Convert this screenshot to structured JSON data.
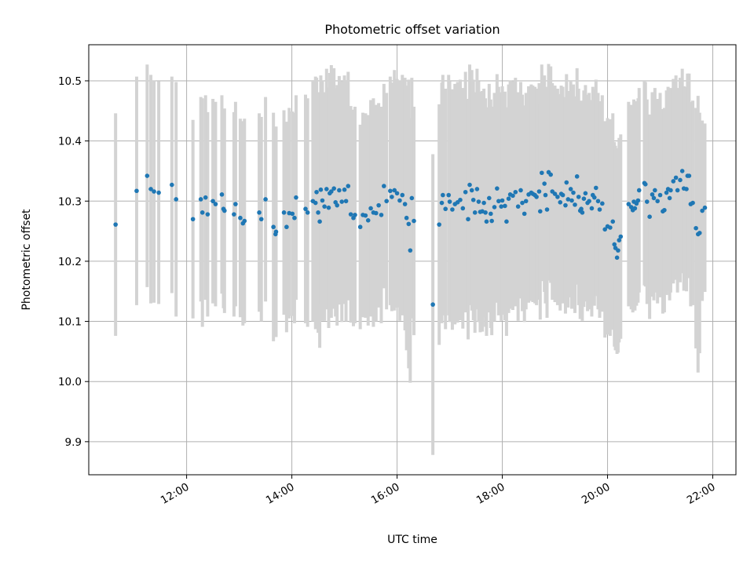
{
  "chart_data": {
    "type": "scatter",
    "title": "Photometric offset variation",
    "xlabel": "UTC time",
    "ylabel": "Photometric offset",
    "x_axis_type": "time",
    "x_unit": "hours UTC",
    "xlim": [
      10.14,
      22.44
    ],
    "ylim": [
      9.845,
      10.56
    ],
    "x_ticks": [
      {
        "value": 12,
        "label": "12:00"
      },
      {
        "value": 14,
        "label": "14:00"
      },
      {
        "value": 16,
        "label": "16:00"
      },
      {
        "value": 18,
        "label": "18:00"
      },
      {
        "value": 20,
        "label": "20:00"
      },
      {
        "value": 22,
        "label": "22:00"
      }
    ],
    "y_ticks": [
      {
        "value": 9.9,
        "label": "9.9"
      },
      {
        "value": 10.0,
        "label": "10.0"
      },
      {
        "value": 10.1,
        "label": "10.1"
      },
      {
        "value": 10.2,
        "label": "10.2"
      },
      {
        "value": 10.3,
        "label": "10.3"
      },
      {
        "value": 10.4,
        "label": "10.4"
      },
      {
        "value": 10.5,
        "label": "10.5"
      }
    ],
    "grid": true,
    "legend": "none",
    "colors": {
      "point": "#1f77b4",
      "errorbar": "#d3d3d3",
      "grid": "#b0b0b0"
    },
    "points": [
      [
        10.65,
        10.261,
        0.185
      ],
      [
        11.05,
        10.317,
        0.19
      ],
      [
        11.25,
        10.342,
        0.185
      ],
      [
        11.32,
        10.32,
        0.19
      ],
      [
        11.38,
        10.316,
        0.185
      ],
      [
        11.47,
        10.314,
        0.185
      ],
      [
        11.72,
        10.327,
        0.18
      ],
      [
        11.8,
        10.303,
        0.195
      ],
      [
        12.12,
        10.27,
        0.165
      ],
      [
        12.27,
        10.303,
        0.17
      ],
      [
        12.3,
        10.281,
        0.19
      ],
      [
        12.36,
        10.306,
        0.17
      ],
      [
        12.4,
        10.278,
        0.17
      ],
      [
        12.5,
        10.3,
        0.17
      ],
      [
        12.55,
        10.295,
        0.17
      ],
      [
        12.67,
        10.311,
        0.165
      ],
      [
        12.7,
        10.287,
        0.165
      ],
      [
        12.72,
        10.284,
        0.17
      ],
      [
        12.9,
        10.278,
        0.17
      ],
      [
        12.93,
        10.295,
        0.17
      ],
      [
        13.02,
        10.272,
        0.165
      ],
      [
        13.07,
        10.263,
        0.17
      ],
      [
        13.1,
        10.267,
        0.17
      ],
      [
        13.38,
        10.281,
        0.165
      ],
      [
        13.42,
        10.27,
        0.17
      ],
      [
        13.5,
        10.303,
        0.17
      ],
      [
        13.65,
        10.257,
        0.19
      ],
      [
        13.69,
        10.245,
        0.17
      ],
      [
        13.7,
        10.249,
        0.175
      ],
      [
        13.85,
        10.281,
        0.17
      ],
      [
        13.9,
        10.257,
        0.175
      ],
      [
        13.95,
        10.28,
        0.175
      ],
      [
        14.01,
        10.279,
        0.17
      ],
      [
        14.05,
        10.272,
        0.175
      ],
      [
        14.08,
        10.306,
        0.17
      ],
      [
        14.26,
        10.287,
        0.19
      ],
      [
        14.3,
        10.281,
        0.19
      ],
      [
        14.4,
        10.3,
        0.2
      ],
      [
        14.45,
        10.297,
        0.21
      ],
      [
        14.47,
        10.315,
        0.19
      ],
      [
        14.5,
        10.281,
        0.2
      ],
      [
        14.53,
        10.266,
        0.21
      ],
      [
        14.55,
        10.319,
        0.19
      ],
      [
        14.58,
        10.301,
        0.2
      ],
      [
        14.62,
        10.291,
        0.19
      ],
      [
        14.66,
        10.32,
        0.2
      ],
      [
        14.7,
        10.289,
        0.2
      ],
      [
        14.72,
        10.313,
        0.2
      ],
      [
        14.75,
        10.316,
        0.21
      ],
      [
        14.8,
        10.321,
        0.2
      ],
      [
        14.83,
        10.298,
        0.19
      ],
      [
        14.86,
        10.293,
        0.2
      ],
      [
        14.9,
        10.318,
        0.19
      ],
      [
        14.95,
        10.299,
        0.2
      ],
      [
        15.0,
        10.319,
        0.19
      ],
      [
        15.03,
        10.3,
        0.2
      ],
      [
        15.07,
        10.325,
        0.19
      ],
      [
        15.12,
        10.278,
        0.18
      ],
      [
        15.17,
        10.272,
        0.18
      ],
      [
        15.2,
        10.277,
        0.18
      ],
      [
        15.3,
        10.257,
        0.17
      ],
      [
        15.35,
        10.277,
        0.17
      ],
      [
        15.4,
        10.276,
        0.17
      ],
      [
        15.45,
        10.268,
        0.175
      ],
      [
        15.5,
        10.288,
        0.18
      ],
      [
        15.55,
        10.281,
        0.19
      ],
      [
        15.6,
        10.28,
        0.18
      ],
      [
        15.65,
        10.293,
        0.17
      ],
      [
        15.7,
        10.277,
        0.18
      ],
      [
        15.75,
        10.325,
        0.17
      ],
      [
        15.8,
        10.3,
        0.18
      ],
      [
        15.87,
        10.317,
        0.19
      ],
      [
        15.9,
        10.307,
        0.19
      ],
      [
        15.95,
        10.318,
        0.2
      ],
      [
        16.0,
        10.313,
        0.19
      ],
      [
        16.05,
        10.301,
        0.2
      ],
      [
        16.1,
        10.31,
        0.2
      ],
      [
        16.15,
        10.295,
        0.21
      ],
      [
        16.18,
        10.272,
        0.22
      ],
      [
        16.22,
        10.262,
        0.24
      ],
      [
        16.25,
        10.218,
        0.22
      ],
      [
        16.28,
        10.305,
        0.2
      ],
      [
        16.32,
        10.267,
        0.19
      ],
      [
        16.68,
        10.128,
        0.25
      ],
      [
        16.8,
        10.261,
        0.2
      ],
      [
        16.85,
        10.297,
        0.2
      ],
      [
        16.87,
        10.31,
        0.2
      ],
      [
        16.92,
        10.287,
        0.2
      ],
      [
        16.98,
        10.31,
        0.2
      ],
      [
        17.0,
        10.299,
        0.2
      ],
      [
        17.05,
        10.286,
        0.2
      ],
      [
        17.1,
        10.295,
        0.2
      ],
      [
        17.15,
        10.298,
        0.2
      ],
      [
        17.2,
        10.302,
        0.2
      ],
      [
        17.25,
        10.288,
        0.2
      ],
      [
        17.3,
        10.315,
        0.2
      ],
      [
        17.35,
        10.27,
        0.2
      ],
      [
        17.38,
        10.327,
        0.2
      ],
      [
        17.42,
        10.318,
        0.2
      ],
      [
        17.45,
        10.302,
        0.2
      ],
      [
        17.48,
        10.281,
        0.2
      ],
      [
        17.52,
        10.32,
        0.2
      ],
      [
        17.55,
        10.299,
        0.2
      ],
      [
        17.58,
        10.282,
        0.2
      ],
      [
        17.62,
        10.283,
        0.2
      ],
      [
        17.65,
        10.297,
        0.19
      ],
      [
        17.68,
        10.281,
        0.19
      ],
      [
        17.7,
        10.266,
        0.19
      ],
      [
        17.75,
        10.305,
        0.19
      ],
      [
        17.78,
        10.279,
        0.19
      ],
      [
        17.8,
        10.267,
        0.19
      ],
      [
        17.85,
        10.29,
        0.19
      ],
      [
        17.9,
        10.321,
        0.19
      ],
      [
        17.93,
        10.3,
        0.19
      ],
      [
        17.98,
        10.291,
        0.19
      ],
      [
        18.0,
        10.301,
        0.19
      ],
      [
        18.05,
        10.292,
        0.19
      ],
      [
        18.08,
        10.266,
        0.19
      ],
      [
        18.12,
        10.304,
        0.19
      ],
      [
        18.15,
        10.311,
        0.19
      ],
      [
        18.2,
        10.309,
        0.19
      ],
      [
        18.25,
        10.315,
        0.19
      ],
      [
        18.3,
        10.291,
        0.19
      ],
      [
        18.35,
        10.318,
        0.18
      ],
      [
        18.38,
        10.297,
        0.18
      ],
      [
        18.42,
        10.279,
        0.18
      ],
      [
        18.45,
        10.3,
        0.18
      ],
      [
        18.5,
        10.311,
        0.18
      ],
      [
        18.55,
        10.314,
        0.18
      ],
      [
        18.58,
        10.312,
        0.18
      ],
      [
        18.62,
        10.31,
        0.18
      ],
      [
        18.65,
        10.307,
        0.18
      ],
      [
        18.7,
        10.316,
        0.18
      ],
      [
        18.72,
        10.283,
        0.18
      ],
      [
        18.75,
        10.347,
        0.18
      ],
      [
        18.8,
        10.329,
        0.18
      ],
      [
        18.82,
        10.31,
        0.18
      ],
      [
        18.85,
        10.286,
        0.18
      ],
      [
        18.88,
        10.348,
        0.18
      ],
      [
        18.92,
        10.344,
        0.18
      ],
      [
        18.95,
        10.316,
        0.18
      ],
      [
        19.0,
        10.312,
        0.18
      ],
      [
        19.05,
        10.307,
        0.18
      ],
      [
        19.1,
        10.298,
        0.18
      ],
      [
        19.12,
        10.312,
        0.18
      ],
      [
        19.15,
        10.31,
        0.18
      ],
      [
        19.2,
        10.293,
        0.18
      ],
      [
        19.22,
        10.331,
        0.18
      ],
      [
        19.25,
        10.303,
        0.18
      ],
      [
        19.3,
        10.32,
        0.18
      ],
      [
        19.32,
        10.301,
        0.18
      ],
      [
        19.35,
        10.314,
        0.18
      ],
      [
        19.38,
        10.294,
        0.18
      ],
      [
        19.42,
        10.341,
        0.18
      ],
      [
        19.45,
        10.307,
        0.18
      ],
      [
        19.48,
        10.284,
        0.18
      ],
      [
        19.5,
        10.287,
        0.18
      ],
      [
        19.52,
        10.281,
        0.18
      ],
      [
        19.55,
        10.304,
        0.18
      ],
      [
        19.58,
        10.313,
        0.18
      ],
      [
        19.62,
        10.297,
        0.18
      ],
      [
        19.65,
        10.3,
        0.18
      ],
      [
        19.7,
        10.288,
        0.18
      ],
      [
        19.72,
        10.31,
        0.18
      ],
      [
        19.75,
        10.306,
        0.18
      ],
      [
        19.78,
        10.322,
        0.18
      ],
      [
        19.82,
        10.3,
        0.18
      ],
      [
        19.85,
        10.286,
        0.18
      ],
      [
        19.9,
        10.296,
        0.18
      ],
      [
        19.95,
        10.253,
        0.18
      ],
      [
        20.0,
        10.258,
        0.18
      ],
      [
        20.05,
        10.256,
        0.18
      ],
      [
        20.1,
        10.266,
        0.18
      ],
      [
        20.13,
        10.228,
        0.17
      ],
      [
        20.15,
        10.222,
        0.17
      ],
      [
        20.18,
        10.206,
        0.16
      ],
      [
        20.2,
        10.218,
        0.17
      ],
      [
        20.22,
        10.235,
        0.17
      ],
      [
        20.25,
        10.241,
        0.17
      ],
      [
        20.4,
        10.295,
        0.17
      ],
      [
        20.45,
        10.29,
        0.17
      ],
      [
        20.48,
        10.285,
        0.17
      ],
      [
        20.5,
        10.299,
        0.17
      ],
      [
        20.52,
        10.288,
        0.17
      ],
      [
        20.55,
        10.296,
        0.17
      ],
      [
        20.58,
        10.301,
        0.17
      ],
      [
        20.6,
        10.318,
        0.17
      ],
      [
        20.7,
        10.33,
        0.17
      ],
      [
        20.72,
        10.328,
        0.17
      ],
      [
        20.75,
        10.299,
        0.17
      ],
      [
        20.8,
        10.274,
        0.17
      ],
      [
        20.85,
        10.311,
        0.17
      ],
      [
        20.88,
        10.305,
        0.17
      ],
      [
        20.9,
        10.318,
        0.17
      ],
      [
        20.95,
        10.3,
        0.17
      ],
      [
        21.0,
        10.31,
        0.17
      ],
      [
        21.05,
        10.283,
        0.17
      ],
      [
        21.08,
        10.285,
        0.17
      ],
      [
        21.12,
        10.314,
        0.17
      ],
      [
        21.15,
        10.32,
        0.17
      ],
      [
        21.18,
        10.305,
        0.17
      ],
      [
        21.2,
        10.318,
        0.17
      ],
      [
        21.25,
        10.333,
        0.17
      ],
      [
        21.3,
        10.339,
        0.17
      ],
      [
        21.33,
        10.318,
        0.17
      ],
      [
        21.38,
        10.335,
        0.17
      ],
      [
        21.42,
        10.35,
        0.17
      ],
      [
        21.45,
        10.321,
        0.17
      ],
      [
        21.5,
        10.32,
        0.17
      ],
      [
        21.52,
        10.342,
        0.17
      ],
      [
        21.55,
        10.342,
        0.17
      ],
      [
        21.58,
        10.295,
        0.17
      ],
      [
        21.62,
        10.297,
        0.17
      ],
      [
        21.68,
        10.255,
        0.2
      ],
      [
        21.72,
        10.245,
        0.23
      ],
      [
        21.75,
        10.247,
        0.2
      ],
      [
        21.8,
        10.284,
        0.15
      ],
      [
        21.85,
        10.289,
        0.14
      ]
    ]
  }
}
